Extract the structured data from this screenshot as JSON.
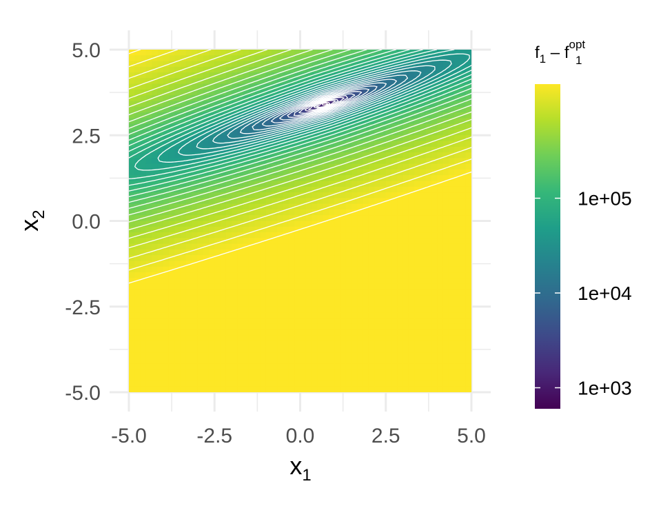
{
  "chart_data": {
    "type": "heatmap",
    "subtype": "filled-contour",
    "xlim": [
      -5,
      5
    ],
    "ylim": [
      -5,
      5
    ],
    "x_ticks": [
      -5.0,
      -2.5,
      0.0,
      2.5,
      5.0
    ],
    "y_ticks": [
      -5.0,
      -2.5,
      0.0,
      2.5,
      5.0
    ],
    "x_tick_labels": [
      "-5.0",
      "-2.5",
      "0.0",
      "2.5",
      "5.0"
    ],
    "y_tick_labels": [
      "-5.0",
      "-2.5",
      "0.0",
      "2.5",
      "5.0"
    ],
    "xlabel": {
      "base": "x",
      "sub": "1"
    },
    "ylabel": {
      "base": "x",
      "sub": "2"
    },
    "legend": {
      "title": {
        "f": "f",
        "sub1": "1",
        "minus": " – ",
        "f2": "f",
        "sub2": "1",
        "sup": "opt"
      },
      "scale": "log",
      "range": [
        600,
        1600000
      ],
      "ticks": [
        1000,
        10000,
        100000
      ],
      "tick_labels": [
        "1e+03",
        "1e+04",
        "1e+05"
      ],
      "placement": "right",
      "colormap": "viridis"
    },
    "minimum": {
      "x": 0.7,
      "y": 3.4
    },
    "contour_lines": {
      "color": "#ffffff"
    },
    "grid": true,
    "colors": {
      "viridis": [
        "#440154",
        "#482878",
        "#3e4989",
        "#31688e",
        "#26828e",
        "#1f9e89",
        "#35b779",
        "#6ece58",
        "#b5de2b",
        "#fde725"
      ],
      "grid": "#ebebeb",
      "contour": "#ffffff"
    }
  }
}
